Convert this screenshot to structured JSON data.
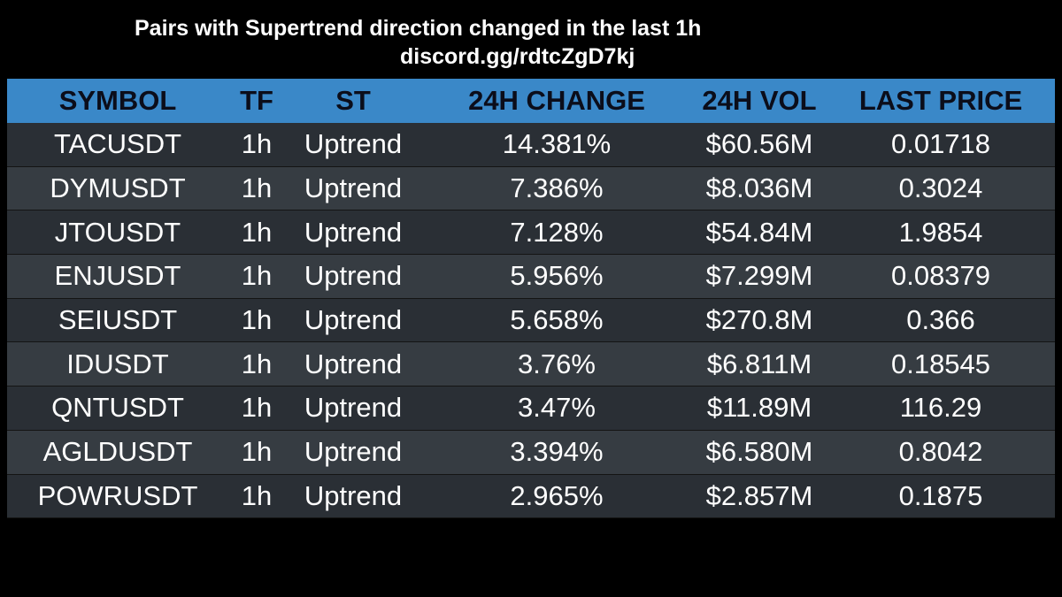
{
  "header": {
    "title": "Pairs with Supertrend direction changed in the last 1h",
    "subtitle": "discord.gg/rdtcZgD7kj"
  },
  "colors": {
    "header_bg": "#3a88c8",
    "row_odd_bg": "#2a2f35",
    "row_even_bg": "#363c42",
    "page_bg": "#000000"
  },
  "table": {
    "columns": [
      "SYMBOL",
      "TF",
      "ST",
      "24H CHANGE",
      "24H VOL",
      "LAST PRICE"
    ],
    "rows": [
      {
        "symbol": "TACUSDT",
        "tf": "1h",
        "st": "Uptrend",
        "change": "14.381%",
        "vol": "$60.56M",
        "price": "0.01718"
      },
      {
        "symbol": "DYMUSDT",
        "tf": "1h",
        "st": "Uptrend",
        "change": "7.386%",
        "vol": "$8.036M",
        "price": "0.3024"
      },
      {
        "symbol": "JTOUSDT",
        "tf": "1h",
        "st": "Uptrend",
        "change": "7.128%",
        "vol": "$54.84M",
        "price": "1.9854"
      },
      {
        "symbol": "ENJUSDT",
        "tf": "1h",
        "st": "Uptrend",
        "change": "5.956%",
        "vol": "$7.299M",
        "price": "0.08379"
      },
      {
        "symbol": "SEIUSDT",
        "tf": "1h",
        "st": "Uptrend",
        "change": "5.658%",
        "vol": "$270.8M",
        "price": "0.366"
      },
      {
        "symbol": "IDUSDT",
        "tf": "1h",
        "st": "Uptrend",
        "change": "3.76%",
        "vol": "$6.811M",
        "price": "0.18545"
      },
      {
        "symbol": "QNTUSDT",
        "tf": "1h",
        "st": "Uptrend",
        "change": "3.47%",
        "vol": "$11.89M",
        "price": "116.29"
      },
      {
        "symbol": "AGLDUSDT",
        "tf": "1h",
        "st": "Uptrend",
        "change": "3.394%",
        "vol": "$6.580M",
        "price": "0.8042"
      },
      {
        "symbol": "POWRUSDT",
        "tf": "1h",
        "st": "Uptrend",
        "change": "2.965%",
        "vol": "$2.857M",
        "price": "0.1875"
      }
    ]
  }
}
